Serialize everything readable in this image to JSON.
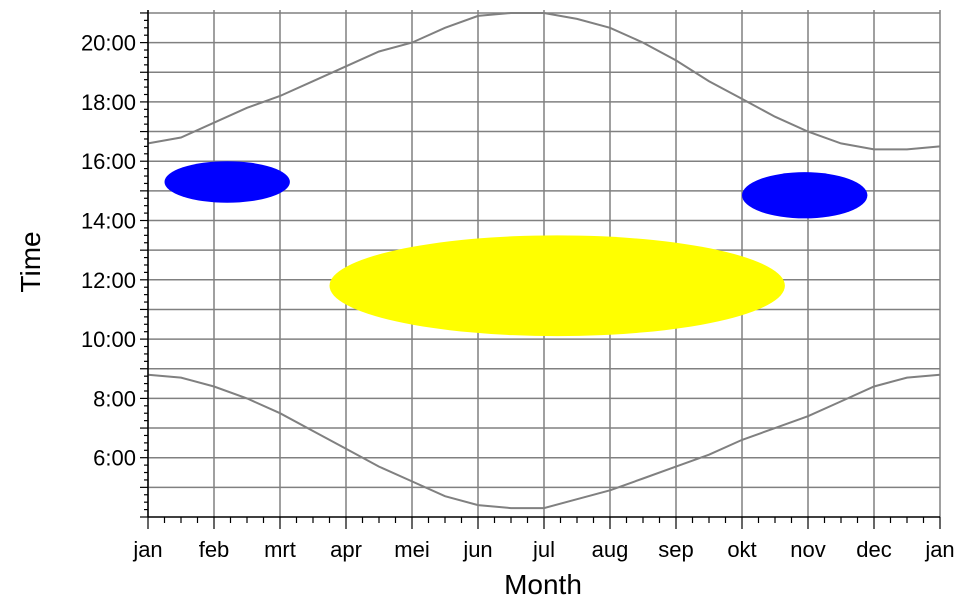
{
  "chart_data": {
    "type": "line",
    "xlabel": "Month",
    "ylabel": "Time",
    "x_ticks": [
      "jan",
      "feb",
      "mrt",
      "apr",
      "mei",
      "jun",
      "jul",
      "aug",
      "sep",
      "okt",
      "nov",
      "dec",
      "jan"
    ],
    "y_ticks": [
      "6:00",
      "8:00",
      "10:00",
      "12:00",
      "14:00",
      "16:00",
      "18:00",
      "20:00"
    ],
    "xlim": [
      0,
      12
    ],
    "ylim": [
      4.0,
      21.1
    ],
    "grid": true,
    "series": [
      {
        "kind": "line",
        "color": "#808080",
        "x": [
          0,
          0.5,
          1,
          1.5,
          2,
          2.5,
          3,
          3.5,
          4,
          4.5,
          5,
          5.5,
          6,
          6.5,
          7,
          7.5,
          8,
          8.5,
          9,
          9.5,
          10,
          10.5,
          11,
          11.5,
          12
        ],
        "y": [
          16.6,
          16.8,
          17.3,
          17.8,
          18.2,
          18.7,
          19.2,
          19.7,
          20.0,
          20.5,
          20.9,
          21.0,
          21.0,
          20.8,
          20.5,
          20.0,
          19.4,
          18.7,
          18.1,
          17.5,
          17.0,
          16.6,
          16.4,
          16.4,
          16.5
        ]
      },
      {
        "kind": "line",
        "color": "#808080",
        "x": [
          0,
          0.5,
          1,
          1.5,
          2,
          2.5,
          3,
          3.5,
          4,
          4.5,
          5,
          5.5,
          6,
          6.5,
          7,
          7.5,
          8,
          8.5,
          9,
          9.5,
          10,
          10.5,
          11,
          11.5,
          12
        ],
        "y": [
          8.8,
          8.7,
          8.4,
          8.0,
          7.5,
          6.9,
          6.3,
          5.7,
          5.2,
          4.7,
          4.4,
          4.3,
          4.3,
          4.6,
          4.9,
          5.3,
          5.7,
          6.1,
          6.6,
          7.0,
          7.4,
          7.9,
          8.4,
          8.7,
          8.8
        ]
      },
      {
        "kind": "area",
        "color": "#0000ff",
        "cx": 1.2,
        "cy": 15.3,
        "rx": 0.95,
        "ry": 0.7
      },
      {
        "kind": "area",
        "color": "#0000ff",
        "cx": 9.95,
        "cy": 14.85,
        "rx": 0.95,
        "ry": 0.78
      },
      {
        "kind": "area",
        "color": "#ffff00",
        "cx": 6.2,
        "cy": 11.8,
        "rx": 3.45,
        "ry": 1.7
      }
    ]
  }
}
